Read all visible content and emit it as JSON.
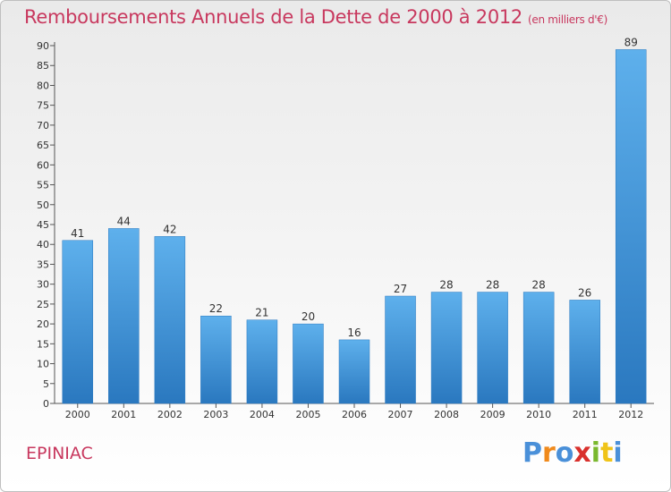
{
  "title": "Remboursements Annuels de la Dette de 2000 à 2012",
  "subtitle": "(en milliers d'€)",
  "place": "EPINIAC",
  "logo": {
    "letters": [
      "P",
      "r",
      "o",
      "x",
      "i",
      "t",
      "i"
    ],
    "colors": [
      "#4a90d9",
      "#f08a1c",
      "#4a90d9",
      "#d9302c",
      "#7ab82e",
      "#f0c419",
      "#4a90d9"
    ]
  },
  "colors": {
    "bar": "#3b8fd4",
    "accent": "#c8385e"
  },
  "chart_data": {
    "type": "bar",
    "title": "Remboursements Annuels de la Dette de 2000 à 2012",
    "categories": [
      "2000",
      "2001",
      "2002",
      "2003",
      "2004",
      "2005",
      "2006",
      "2007",
      "2008",
      "2009",
      "2010",
      "2011",
      "2012"
    ],
    "values": [
      41,
      44,
      42,
      22,
      21,
      20,
      16,
      27,
      28,
      28,
      28,
      26,
      89
    ],
    "ylim": [
      0,
      90
    ],
    "yticks": [
      0,
      5,
      10,
      15,
      20,
      25,
      30,
      35,
      40,
      45,
      50,
      55,
      60,
      65,
      70,
      75,
      80,
      85,
      90
    ],
    "grid": false
  }
}
